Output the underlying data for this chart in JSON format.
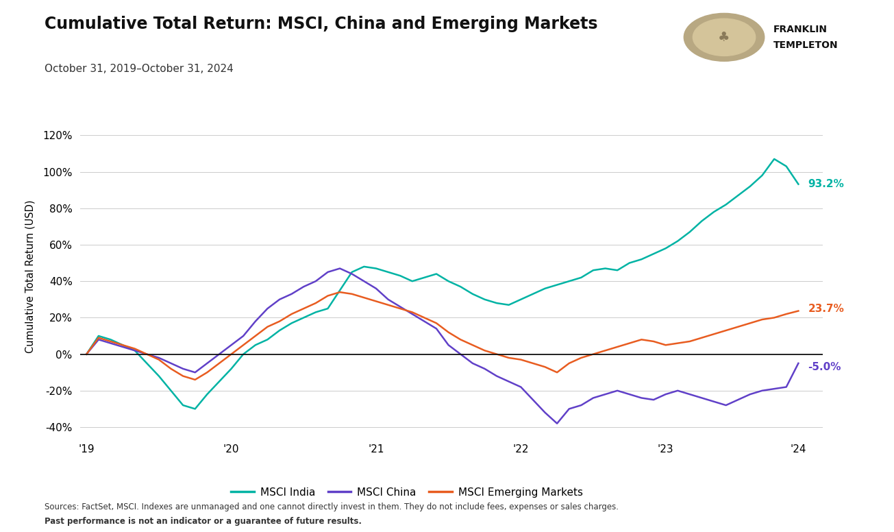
{
  "title": "Cumulative Total Return: MSCI, China and Emerging Markets",
  "subtitle": "October 31, 2019–October 31, 2024",
  "ylabel": "Cumulative Total Return (USD)",
  "colors": {
    "india": "#00b3a4",
    "china": "#6040c8",
    "em": "#e85c20"
  },
  "end_labels": {
    "india": "93.2%",
    "china": "-5.0%",
    "em": "23.7%"
  },
  "ylim": [
    -45,
    130
  ],
  "yticks": [
    -40,
    -20,
    0,
    20,
    40,
    60,
    80,
    100,
    120
  ],
  "background_color": "#ffffff",
  "india_y": [
    0,
    10,
    8,
    5,
    2,
    -5,
    -12,
    -20,
    -28,
    -30,
    -22,
    -15,
    -8,
    0,
    5,
    8,
    13,
    17,
    20,
    23,
    25,
    35,
    45,
    48,
    47,
    45,
    43,
    40,
    42,
    44,
    40,
    37,
    33,
    30,
    28,
    27,
    30,
    33,
    36,
    38,
    40,
    42,
    46,
    47,
    46,
    50,
    52,
    55,
    58,
    62,
    67,
    73,
    78,
    82,
    87,
    92,
    98,
    107,
    103,
    93.2
  ],
  "china_y": [
    0,
    8,
    6,
    4,
    2,
    0,
    -2,
    -5,
    -8,
    -10,
    -5,
    0,
    5,
    10,
    18,
    25,
    30,
    33,
    37,
    40,
    45,
    47,
    44,
    40,
    36,
    30,
    26,
    22,
    18,
    14,
    5,
    0,
    -5,
    -8,
    -12,
    -15,
    -18,
    -25,
    -32,
    -38,
    -30,
    -28,
    -24,
    -22,
    -20,
    -22,
    -24,
    -25,
    -22,
    -20,
    -22,
    -24,
    -26,
    -28,
    -25,
    -22,
    -20,
    -19,
    -18,
    -5.0
  ],
  "em_y": [
    0,
    9,
    7,
    5,
    3,
    0,
    -3,
    -8,
    -12,
    -14,
    -10,
    -5,
    0,
    5,
    10,
    15,
    18,
    22,
    25,
    28,
    32,
    34,
    33,
    31,
    29,
    27,
    25,
    23,
    20,
    17,
    12,
    8,
    5,
    2,
    0,
    -2,
    -3,
    -5,
    -7,
    -10,
    -5,
    -2,
    0,
    2,
    4,
    6,
    8,
    7,
    5,
    6,
    7,
    9,
    11,
    13,
    15,
    17,
    19,
    20,
    22,
    23.7
  ],
  "xtick_positions": [
    0,
    12,
    24,
    36,
    48,
    59
  ],
  "xtick_labels": [
    "'19",
    "'20",
    "'21",
    "'22",
    "'23",
    "'24"
  ]
}
